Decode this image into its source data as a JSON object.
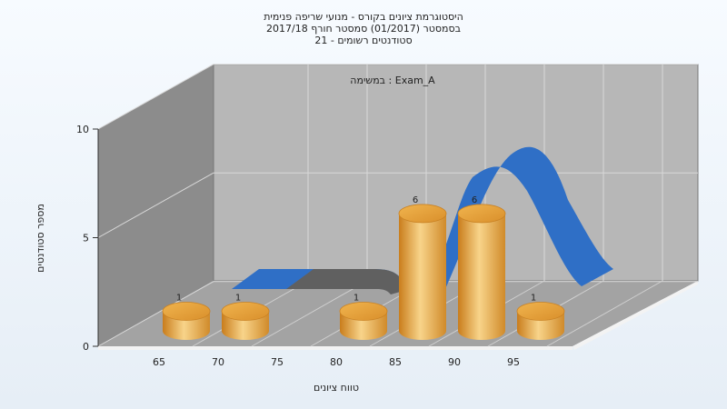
{
  "chart_data": {
    "type": "bar",
    "title_lines": [
      "היסטוגרמת ציונים בקורס - מנועי שריפה פנימית",
      "בסמסטר  (01/2017)  סמסטר חורף 2017/18",
      "סטודנטים רשומים - 21"
    ],
    "task_label": "במשימה : Exam_A",
    "categories": [
      "65",
      "70",
      "75",
      "80",
      "85",
      "90",
      "95"
    ],
    "values": [
      1,
      1,
      0,
      1,
      6,
      6,
      1
    ],
    "xlabel": "טווח ציונים",
    "ylabel": "מספר סטודנטים",
    "ylim": [
      0,
      10
    ],
    "yticks": [
      0,
      5,
      10
    ],
    "grid": true,
    "bar_color": "#e8a33c",
    "curve_color": "#2f6fc6",
    "back_wall_color": "#b7b7b7",
    "side_wall_color": "#8c8c8c",
    "floor_color": "#a3a3a3"
  }
}
